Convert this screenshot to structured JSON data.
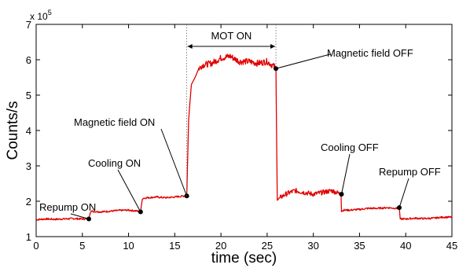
{
  "chart_data": {
    "type": "line",
    "xlabel": "time (sec)",
    "ylabel": "Counts/s",
    "xlim": [
      0,
      45
    ],
    "ylim": [
      1,
      7
    ],
    "y_multiplier_label": "x 10",
    "y_multiplier_exponent": "5",
    "x_ticks": [
      "0",
      "5",
      "10",
      "15",
      "20",
      "25",
      "30",
      "35",
      "40",
      "45"
    ],
    "y_ticks": [
      "1",
      "2",
      "3",
      "4",
      "5",
      "6",
      "7"
    ],
    "grid": false,
    "line_color": "#e00000",
    "marker_color": "#000000",
    "series": [
      {
        "x": [
          0,
          1,
          2,
          3,
          4,
          5,
          5.7,
          5.9,
          7,
          8,
          9,
          10,
          11,
          11.3,
          11.5,
          12,
          13,
          14,
          15,
          16,
          16.3,
          16.5,
          16.8,
          17.2,
          17.6,
          18,
          19,
          20,
          21,
          22,
          23,
          24,
          25,
          25.8,
          25.95,
          26.1,
          27,
          28,
          29,
          30,
          31,
          32,
          33,
          33.05,
          33.3,
          34,
          35,
          36,
          37,
          38,
          39,
          39.3,
          39.4,
          40,
          41,
          42,
          43,
          44,
          45
        ],
        "y": [
          1.48,
          1.5,
          1.49,
          1.5,
          1.51,
          1.5,
          1.5,
          1.72,
          1.7,
          1.72,
          1.74,
          1.75,
          1.72,
          1.7,
          2.08,
          2.1,
          2.12,
          2.1,
          2.12,
          2.15,
          2.15,
          4.3,
          5.3,
          5.5,
          5.75,
          5.85,
          5.9,
          6.05,
          6.1,
          5.95,
          5.95,
          5.9,
          5.95,
          5.8,
          5.75,
          2.05,
          2.2,
          2.3,
          2.25,
          2.2,
          2.25,
          2.3,
          2.2,
          1.72,
          1.75,
          1.75,
          1.77,
          1.8,
          1.8,
          1.82,
          1.8,
          1.82,
          1.5,
          1.5,
          1.52,
          1.51,
          1.52,
          1.55,
          1.55
        ]
      }
    ],
    "events": [
      {
        "label": "Repump ON",
        "x": 5.7,
        "y": 1.5
      },
      {
        "label": "Cooling ON",
        "x": 11.3,
        "y": 1.7
      },
      {
        "label": "Magnetic field ON",
        "x": 16.3,
        "y": 2.15
      },
      {
        "label": "Magnetic field OFF",
        "x": 25.95,
        "y": 5.75
      },
      {
        "label": "Cooling OFF",
        "x": 33.05,
        "y": 2.2
      },
      {
        "label": "Repump OFF",
        "x": 39.3,
        "y": 1.82
      }
    ],
    "span_annotation": {
      "label": "MOT ON",
      "x_start": 16.3,
      "x_end": 25.95
    }
  }
}
